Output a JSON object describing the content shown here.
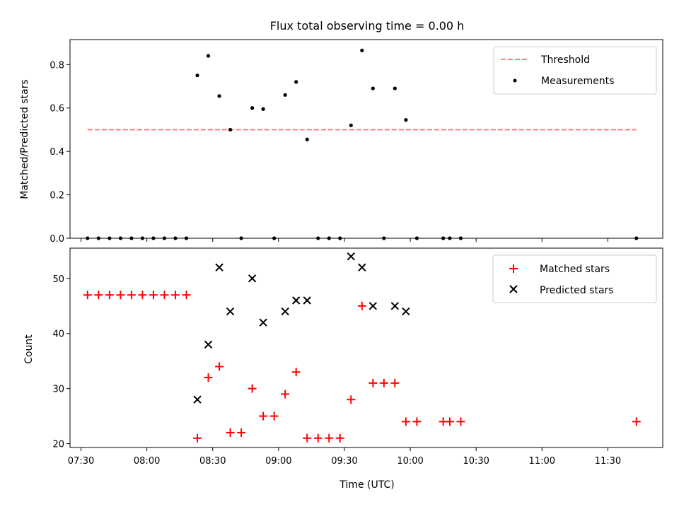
{
  "chart_data": [
    {
      "type": "scatter",
      "title": "Flux total observing time = 0.00 h",
      "xlabel": "",
      "ylabel": "Matched/Predicted stars",
      "ylim": [
        0,
        0.915
      ],
      "yticks": [
        "0.0",
        "0.2",
        "0.4",
        "0.6",
        "0.8"
      ],
      "legend": {
        "placement": "top-right",
        "entries": [
          "Threshold",
          "Measurements"
        ]
      },
      "threshold": {
        "name": "Threshold",
        "value": 0.5,
        "x_start": "07:33",
        "x_end": "11:43",
        "color": "#ff7f7f"
      },
      "measurements": {
        "name": "Measurements",
        "color": "#000000",
        "x": [
          "07:33",
          "07:38",
          "07:43",
          "07:48",
          "07:53",
          "07:58",
          "08:03",
          "08:08",
          "08:13",
          "08:18",
          "08:23",
          "08:28",
          "08:33",
          "08:38",
          "08:43",
          "08:48",
          "08:53",
          "08:58",
          "09:03",
          "09:08",
          "09:13",
          "09:18",
          "09:23",
          "09:28",
          "09:33",
          "09:38",
          "09:43",
          "09:48",
          "09:53",
          "09:58",
          "10:03",
          "10:15",
          "10:18",
          "10:23",
          "11:43"
        ],
        "y": [
          0,
          0,
          0,
          0,
          0,
          0,
          0,
          0,
          0,
          0,
          0.75,
          0.84,
          0.655,
          0.5,
          0,
          0.6,
          0.595,
          0,
          0.66,
          0.72,
          0.455,
          0,
          0,
          0,
          0.52,
          0.865,
          0.69,
          0,
          0.69,
          0.545,
          0,
          0,
          0,
          0,
          0
        ]
      }
    },
    {
      "type": "scatter",
      "title": "",
      "xlabel": "Time (UTC)",
      "ylabel": "Count",
      "ylim": [
        19.3,
        55.5
      ],
      "yticks": [
        "20",
        "30",
        "40",
        "50"
      ],
      "xticks": [
        "07:30",
        "08:00",
        "08:30",
        "09:00",
        "09:30",
        "10:00",
        "10:30",
        "11:00",
        "11:30"
      ],
      "xlim": [
        "07:25",
        "11:55"
      ],
      "legend": {
        "placement": "top-right",
        "entries": [
          "Matched stars",
          "Predicted stars"
        ]
      },
      "series": [
        {
          "name": "Matched stars",
          "marker": "+",
          "color": "#ff0000",
          "x": [
            "07:33",
            "07:38",
            "07:43",
            "07:48",
            "07:53",
            "07:58",
            "08:03",
            "08:08",
            "08:13",
            "08:18",
            "08:23",
            "08:28",
            "08:33",
            "08:38",
            "08:43",
            "08:48",
            "08:53",
            "08:58",
            "09:03",
            "09:08",
            "09:13",
            "09:18",
            "09:23",
            "09:28",
            "09:33",
            "09:38",
            "09:43",
            "09:48",
            "09:53",
            "09:58",
            "10:03",
            "10:15",
            "10:18",
            "10:23",
            "11:43"
          ],
          "y": [
            47,
            47,
            47,
            47,
            47,
            47,
            47,
            47,
            47,
            47,
            21,
            32,
            34,
            22,
            22,
            30,
            25,
            25,
            29,
            33,
            21,
            21,
            21,
            21,
            28,
            45,
            31,
            31,
            31,
            24,
            24,
            24,
            24,
            24,
            24
          ]
        },
        {
          "name": "Predicted stars",
          "marker": "x",
          "color": "#000000",
          "x": [
            "08:23",
            "08:28",
            "08:33",
            "08:38",
            "08:48",
            "08:53",
            "09:03",
            "09:08",
            "09:13",
            "09:33",
            "09:38",
            "09:43",
            "09:53",
            "09:58"
          ],
          "y": [
            28,
            38,
            52,
            44,
            50,
            42,
            44,
            46,
            46,
            54,
            52,
            45,
            45,
            44
          ]
        }
      ]
    }
  ]
}
